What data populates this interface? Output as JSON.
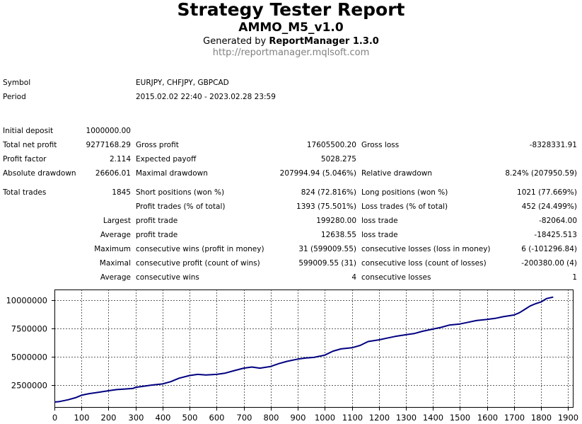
{
  "header": {
    "title": "Strategy Tester Report",
    "subtitle": "AMMO_M5_v1.0",
    "generated_prefix": "Generated by ",
    "generator": "ReportManager 1.3.0",
    "url": "http://reportmanager.mqlsoft.com"
  },
  "info": {
    "symbol_label": "Symbol",
    "symbol_value": "EURJPY, CHFJPY, GBPCAD",
    "period_label": "Period",
    "period_value": "2015.02.02 22:40 - 2023.02.28 23:59"
  },
  "stats": {
    "initial_deposit_label": "Initial deposit",
    "initial_deposit": "1000000.00",
    "total_net_profit_label": "Total net profit",
    "total_net_profit": "9277168.29",
    "gross_profit_label": "Gross profit",
    "gross_profit": "17605500.20",
    "gross_loss_label": "Gross loss",
    "gross_loss": "-8328331.91",
    "profit_factor_label": "Profit factor",
    "profit_factor": "2.114",
    "expected_payoff_label": "Expected payoff",
    "expected_payoff": "5028.275",
    "absolute_drawdown_label": "Absolute drawdown",
    "absolute_drawdown": "26606.01",
    "maximal_drawdown_label": "Maximal drawdown",
    "maximal_drawdown": "207994.94 (5.046%)",
    "relative_drawdown_label": "Relative drawdown",
    "relative_drawdown": "8.24% (207950.59)",
    "total_trades_label": "Total trades",
    "total_trades": "1845",
    "short_positions_label": "Short positions (won %)",
    "short_positions": "824 (72.816%)",
    "long_positions_label": "Long positions (won %)",
    "long_positions": "1021 (77.669%)",
    "profit_trades_label": "Profit trades (% of total)",
    "profit_trades": "1393 (75.501%)",
    "loss_trades_label": "Loss trades (% of total)",
    "loss_trades": "452 (24.499%)",
    "largest_label": "Largest",
    "largest_profit_label": "profit trade",
    "largest_profit": "199280.00",
    "largest_loss_label": "loss trade",
    "largest_loss": "-82064.00",
    "average_label": "Average",
    "average_profit_label": "profit trade",
    "average_profit": "12638.55",
    "average_loss_label": "loss trade",
    "average_loss": "-18425.513",
    "maximum_label": "Maximum",
    "max_consec_wins_label": "consecutive wins (profit in money)",
    "max_consec_wins": "31 (599009.55)",
    "max_consec_losses_label": "consecutive losses (loss in money)",
    "max_consec_losses": "6 (-101296.84)",
    "maximal_label": "Maximal",
    "maximal_consec_profit_label": "consecutive profit (count of wins)",
    "maximal_consec_profit": "599009.55 (31)",
    "maximal_consec_loss_label": "consecutive loss (count of losses)",
    "maximal_consec_loss": "-200380.00 (4)",
    "average2_label": "Average",
    "avg_consec_wins_label": "consecutive wins",
    "avg_consec_wins": "4",
    "avg_consec_losses_label": "consecutive losses",
    "avg_consec_losses": "1"
  },
  "chart_data": {
    "type": "line",
    "x_ticks": [
      0,
      100,
      200,
      300,
      400,
      500,
      600,
      700,
      800,
      900,
      1000,
      1100,
      1200,
      1300,
      1400,
      1500,
      1600,
      1700,
      1800,
      1900
    ],
    "y_ticks": [
      2500000,
      5000000,
      7500000,
      10000000
    ],
    "y_tick_labels": [
      "2500000",
      "5000000",
      "7500000",
      "10000000"
    ],
    "xlim": [
      0,
      1920
    ],
    "ylim": [
      500000,
      10950000
    ],
    "line_color": "#000080",
    "grid": true,
    "series": [
      {
        "x": [
          0,
          20,
          50,
          80,
          100,
          130,
          160,
          200,
          230,
          260,
          290,
          300,
          330,
          360,
          400,
          430,
          460,
          500,
          530,
          560,
          600,
          630,
          660,
          700,
          730,
          760,
          800,
          830,
          860,
          900,
          930,
          960,
          1000,
          1030,
          1060,
          1100,
          1130,
          1160,
          1200,
          1230,
          1260,
          1300,
          1330,
          1360,
          1400,
          1430,
          1460,
          1500,
          1530,
          1560,
          1600,
          1630,
          1660,
          1700,
          1720,
          1740,
          1760,
          1780,
          1800,
          1820,
          1845
        ],
        "y": [
          1000000,
          1050000,
          1200000,
          1400000,
          1600000,
          1750000,
          1850000,
          2000000,
          2100000,
          2150000,
          2200000,
          2300000,
          2400000,
          2500000,
          2600000,
          2800000,
          3100000,
          3350000,
          3450000,
          3400000,
          3450000,
          3550000,
          3750000,
          4000000,
          4100000,
          4000000,
          4150000,
          4400000,
          4600000,
          4800000,
          4900000,
          4950000,
          5150000,
          5500000,
          5700000,
          5800000,
          6000000,
          6350000,
          6500000,
          6650000,
          6800000,
          6950000,
          7050000,
          7250000,
          7450000,
          7600000,
          7800000,
          7900000,
          8050000,
          8200000,
          8300000,
          8400000,
          8550000,
          8700000,
          8900000,
          9200000,
          9500000,
          9700000,
          9850000,
          10150000,
          10280000
        ]
      }
    ]
  }
}
